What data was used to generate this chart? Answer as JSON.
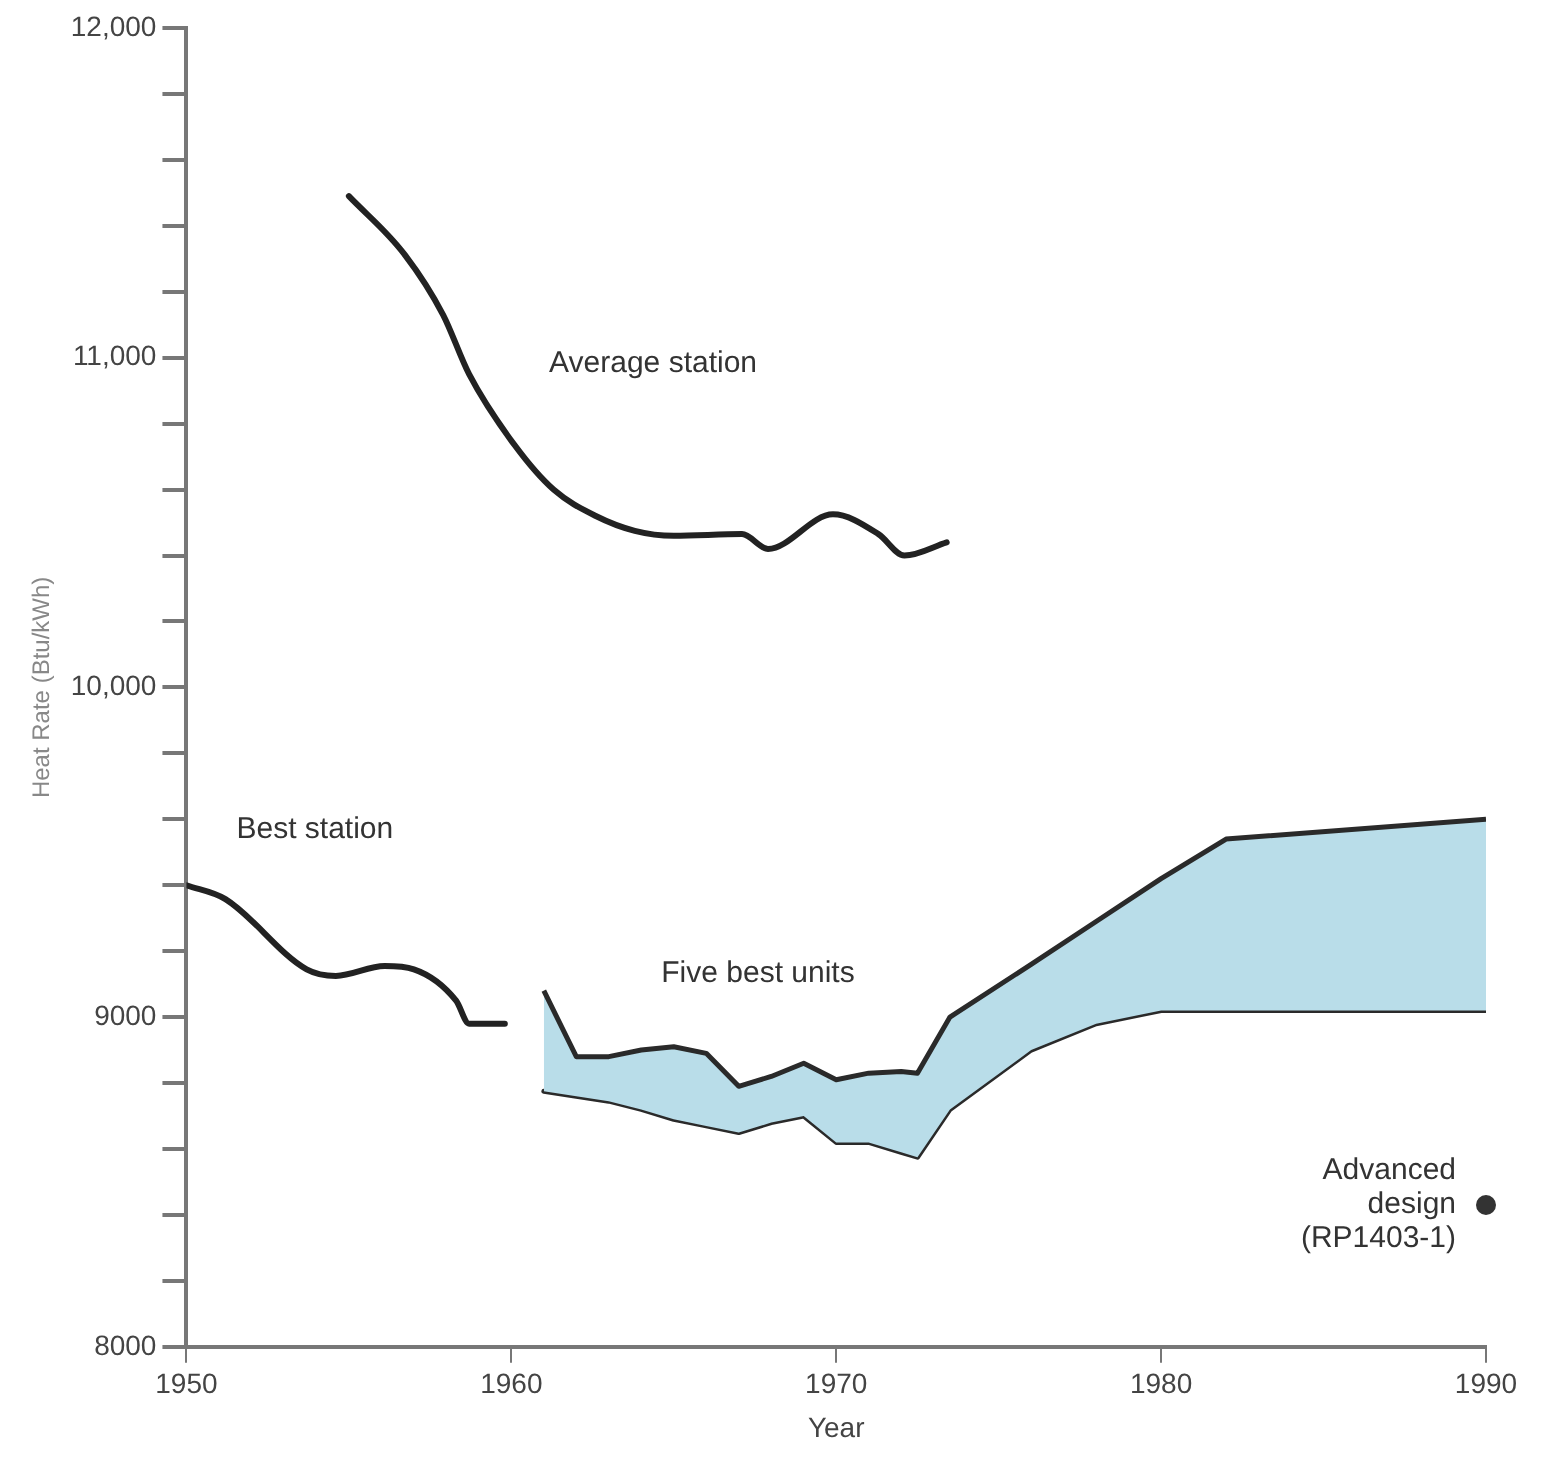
{
  "chart_data": {
    "type": "line",
    "xlabel": "Year",
    "ylabel": "Heat Rate (Btu/kWh)",
    "xlim": [
      1950,
      1990
    ],
    "xticks": [
      1950,
      1960,
      1970,
      1980,
      1990
    ],
    "ylim": [
      8000,
      12000
    ],
    "yticks": [
      {
        "value": 8000,
        "label": "8000"
      },
      {
        "value": 8200,
        "label": null
      },
      {
        "value": 8400,
        "label": null
      },
      {
        "value": 8600,
        "label": null
      },
      {
        "value": 8800,
        "label": null
      },
      {
        "value": 9000,
        "label": "9000"
      },
      {
        "value": 9200,
        "label": null
      },
      {
        "value": 9400,
        "label": null
      },
      {
        "value": 9600,
        "label": null
      },
      {
        "value": 9800,
        "label": null
      },
      {
        "value": 10000,
        "label": "10,000"
      },
      {
        "value": 10200,
        "label": null
      },
      {
        "value": 10400,
        "label": null
      },
      {
        "value": 10600,
        "label": null
      },
      {
        "value": 10800,
        "label": null
      },
      {
        "value": 11000,
        "label": "11,000"
      },
      {
        "value": 11200,
        "label": null
      },
      {
        "value": 11400,
        "label": null
      },
      {
        "value": 11600,
        "label": null
      },
      {
        "value": 11800,
        "label": null
      },
      {
        "value": 12000,
        "label": "12,000"
      }
    ],
    "grid": false,
    "legend": false,
    "marker": "none",
    "line_style": "solid",
    "series": [
      {
        "type": "line",
        "name": "Average station",
        "color": "#222222",
        "x": [
          1955.0,
          1956.7,
          1957.9,
          1958.7,
          1960.1,
          1961.3,
          1962.6,
          1963.8,
          1965.0,
          1967.1,
          1967.9,
          1969.9,
          1971.3,
          1972.1,
          1973.4
        ],
        "values": [
          11490,
          11315,
          11130,
          10950,
          10735,
          10600,
          10520,
          10475,
          10460,
          10465,
          10420,
          10525,
          10465,
          10400,
          10440
        ]
      },
      {
        "type": "line",
        "name": "Best station",
        "color": "#222222",
        "x": [
          1950.0,
          1951.2,
          1953.7,
          1954.6,
          1956.1,
          1957.0,
          1958.3,
          1958.7,
          1959.8
        ],
        "values": [
          9400,
          9358,
          9145,
          9125,
          9155,
          9145,
          9050,
          8980,
          8980
        ]
      },
      {
        "type": "area",
        "name": "Five best units",
        "color": "#b9dde9",
        "x": [
          1961,
          1962,
          1963,
          1964,
          1965,
          1966,
          1967,
          1968,
          1969,
          1970,
          1971,
          1972,
          1972.5,
          1973.5,
          1976,
          1978,
          1980,
          1982,
          1990
        ],
        "values": [
          9080,
          8880,
          8880,
          8900,
          8910,
          8890,
          8790,
          8820,
          8860,
          8810,
          8830,
          8835,
          8830,
          9000,
          9160,
          9290,
          9420,
          9540,
          9600
        ]
      },
      {
        "type": "line",
        "color": "#2a2a2a",
        "x": [
          1961,
          1962,
          1963,
          1964,
          1965,
          1966,
          1967,
          1968,
          1969,
          1970,
          1971,
          1972,
          1972.5,
          1973.5,
          1976,
          1978,
          1980,
          1982,
          1990
        ],
        "values": [
          8775,
          8760,
          8745,
          8720,
          8690,
          8670,
          8650,
          8680,
          8700,
          8620,
          8620,
          8590,
          8575,
          8720,
          8900,
          8980,
          9020,
          9020,
          9020
        ]
      },
      {
        "type": "scatter",
        "name": "Advanced design (RP1403-1)",
        "color": "#333333",
        "marker": "circle",
        "x": [
          1990
        ],
        "values": [
          8430
        ]
      }
    ]
  }
}
